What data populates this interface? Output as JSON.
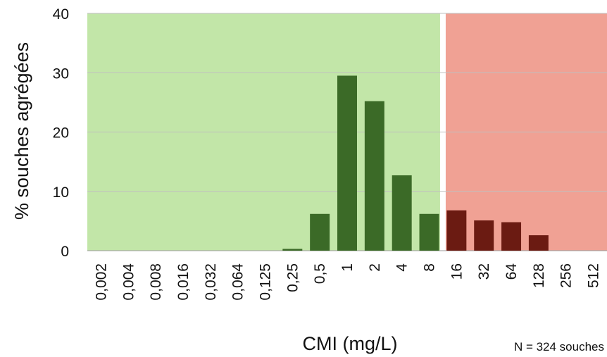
{
  "chart_data": {
    "type": "bar",
    "xlabel": "CMI (mg/L)",
    "ylabel": "% souches agrégées",
    "note": "N = 324 souches",
    "ylim": [
      0,
      40
    ],
    "yticks": [
      0,
      10,
      20,
      30,
      40
    ],
    "grid": true,
    "categories": [
      "0,002",
      "0,004",
      "0,008",
      "0,016",
      "0,032",
      "0,064",
      "0,125",
      "0,25",
      "0,5",
      "1",
      "2",
      "4",
      "8",
      "16",
      "32",
      "64",
      "128",
      "256",
      "512"
    ],
    "values": [
      0,
      0,
      0,
      0,
      0,
      0,
      0,
      0.3,
      6.2,
      29.5,
      25.2,
      12.7,
      6.2,
      6.8,
      5.1,
      4.8,
      2.6,
      0,
      0
    ],
    "susceptible_max_category": "8",
    "colors": {
      "susceptible_bg": "#c2e6a8",
      "resistant_bg": "#f0a194",
      "susceptible_bar": "#3b6a27",
      "resistant_bar": "#6b1b12",
      "gridline": "#bfbfbf"
    }
  }
}
